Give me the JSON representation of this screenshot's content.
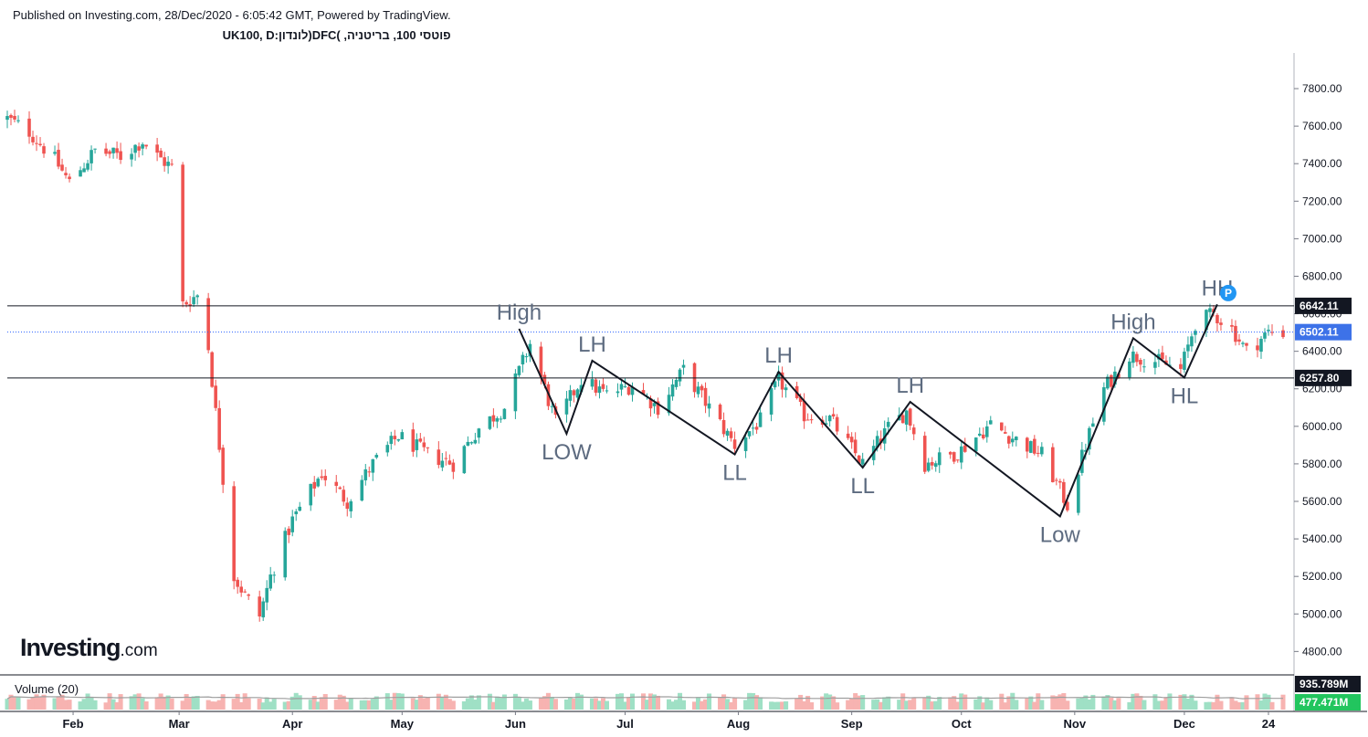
{
  "header": {
    "published": "Published on Investing.com, 28/Dec/2020 - 6:05:42 GMT, Powered by TradingView.",
    "symbol": "פוטסי 100, בריטניה, )DFC(לונדון:UK100, D"
  },
  "logo": {
    "text": "Investing",
    "suffix": ".com"
  },
  "volume_label": "Volume (20)",
  "colors": {
    "up": "#26a69a",
    "up_light": "#9fe0c5",
    "down": "#ef5350",
    "down_light": "#f7b3b1",
    "price_line": "#2962ff",
    "badge_current": "#3d72e8"
  },
  "chart_data": {
    "type": "candlestick",
    "timeframe": "D",
    "price_axis": {
      "ticks": [
        4800,
        5000,
        5200,
        5400,
        5600,
        5800,
        6000,
        6200,
        6400,
        6600,
        6800,
        7000,
        7200,
        7400,
        7600,
        7800
      ],
      "tick_labels": [
        "4800.00",
        "5000.00",
        "5200.00",
        "5400.00",
        "5600.00",
        "5800.00",
        "6000.00",
        "6200.00",
        "6400.00",
        "6600.00",
        "6800.00",
        "7000.00",
        "7200.00",
        "7400.00",
        "7600.00",
        "7800.00"
      ],
      "range": [
        4680,
        7990
      ]
    },
    "time_axis": {
      "labels": [
        "Feb",
        "Mar",
        "Apr",
        "May",
        "Jun",
        "Jul",
        "Aug",
        "Sep",
        "Oct",
        "Nov",
        "Dec",
        "24"
      ],
      "label_dates": [
        "2020-02-01",
        "2020-03-01",
        "2020-04-01",
        "2020-05-01",
        "2020-06-01",
        "2020-07-01",
        "2020-08-01",
        "2020-09-01",
        "2020-10-01",
        "2020-11-01",
        "2020-12-01",
        "2020-12-24"
      ],
      "range": [
        "2020-01-14",
        "2020-12-28"
      ]
    },
    "horizontal_lines": [
      {
        "price": 6642.11,
        "label": "6642.11",
        "style": "solid"
      },
      {
        "price": 6257.8,
        "label": "6257.80",
        "style": "solid"
      }
    ],
    "current_price": {
      "price": 6502.11,
      "label": "6502.11"
    },
    "price_path": [
      [
        "2020-01-14",
        7640
      ],
      [
        "2020-01-20",
        7570
      ],
      [
        "2020-01-27",
        7420
      ],
      [
        "2020-01-31",
        7300
      ],
      [
        "2020-02-07",
        7470
      ],
      [
        "2020-02-14",
        7440
      ],
      [
        "2020-02-20",
        7520
      ],
      [
        "2020-02-24",
        7440
      ],
      [
        "2020-02-28",
        7380
      ],
      [
        "2020-03-02",
        6650
      ],
      [
        "2020-03-06",
        6700
      ],
      [
        "2020-03-09",
        6420
      ],
      [
        "2020-03-12",
        5900
      ],
      [
        "2020-03-16",
        5200
      ],
      [
        "2020-03-19",
        5100
      ],
      [
        "2020-03-23",
        4990
      ],
      [
        "2020-03-26",
        5200
      ],
      [
        "2020-04-01",
        5500
      ],
      [
        "2020-04-09",
        5750
      ],
      [
        "2020-04-16",
        5600
      ],
      [
        "2020-04-23",
        5800
      ],
      [
        "2020-04-30",
        5950
      ],
      [
        "2020-05-08",
        5850
      ],
      [
        "2020-05-15",
        5800
      ],
      [
        "2020-05-22",
        5990
      ],
      [
        "2020-05-29",
        6100
      ],
      [
        "2020-06-05",
        6440
      ],
      [
        "2020-06-12",
        6020
      ],
      [
        "2020-06-19",
        6250
      ],
      [
        "2020-06-26",
        6170
      ],
      [
        "2020-07-03",
        6220
      ],
      [
        "2020-07-10",
        6100
      ],
      [
        "2020-07-17",
        6300
      ],
      [
        "2020-07-24",
        6100
      ],
      [
        "2020-07-31",
        5900
      ],
      [
        "2020-08-07",
        6030
      ],
      [
        "2020-08-12",
        6250
      ],
      [
        "2020-08-19",
        6060
      ],
      [
        "2020-08-26",
        6040
      ],
      [
        "2020-09-04",
        5800
      ],
      [
        "2020-09-11",
        5990
      ],
      [
        "2020-09-16",
        6080
      ],
      [
        "2020-09-21",
        5800
      ],
      [
        "2020-09-30",
        5860
      ],
      [
        "2020-10-09",
        6010
      ],
      [
        "2020-10-15",
        5940
      ],
      [
        "2020-10-23",
        5850
      ],
      [
        "2020-10-30",
        5580
      ],
      [
        "2020-11-04",
        5900
      ],
      [
        "2020-11-09",
        6200
      ],
      [
        "2020-11-16",
        6380
      ],
      [
        "2020-11-23",
        6350
      ],
      [
        "2020-11-30",
        6300
      ],
      [
        "2020-12-04",
        6550
      ],
      [
        "2020-12-09",
        6600
      ],
      [
        "2020-12-14",
        6520
      ],
      [
        "2020-12-18",
        6400
      ],
      [
        "2020-12-21",
        6450
      ],
      [
        "2020-12-24",
        6502
      ]
    ],
    "swing_lines": [
      [
        "2020-06-02",
        6520
      ],
      [
        "2020-06-15",
        5960
      ],
      [
        "2020-06-22",
        6350
      ],
      [
        "2020-07-31",
        5850
      ],
      [
        "2020-08-12",
        6290
      ],
      [
        "2020-09-04",
        5780
      ],
      [
        "2020-09-17",
        6130
      ],
      [
        "2020-10-28",
        5520
      ],
      [
        "2020-11-17",
        6470
      ],
      [
        "2020-12-01",
        6260
      ],
      [
        "2020-12-10",
        6650
      ]
    ],
    "annotations": [
      {
        "text": "High",
        "date": "2020-06-02",
        "price": 6520,
        "position": "above"
      },
      {
        "text": "LOW",
        "date": "2020-06-15",
        "price": 5960,
        "position": "below"
      },
      {
        "text": "LH",
        "date": "2020-06-22",
        "price": 6350,
        "position": "above"
      },
      {
        "text": "LL",
        "date": "2020-07-31",
        "price": 5850,
        "position": "below"
      },
      {
        "text": "LH",
        "date": "2020-08-12",
        "price": 6290,
        "position": "above"
      },
      {
        "text": "LL",
        "date": "2020-09-04",
        "price": 5780,
        "position": "below"
      },
      {
        "text": "LH",
        "date": "2020-09-17",
        "price": 6130,
        "position": "above"
      },
      {
        "text": "Low",
        "date": "2020-10-28",
        "price": 5520,
        "position": "below"
      },
      {
        "text": "High",
        "date": "2020-11-17",
        "price": 6470,
        "position": "above"
      },
      {
        "text": "HL",
        "date": "2020-12-01",
        "price": 6260,
        "position": "below"
      },
      {
        "text": "HH",
        "date": "2020-12-10",
        "price": 6650,
        "position": "above"
      }
    ],
    "marker": {
      "text": "P",
      "date": "2020-12-12",
      "color": "#2196f3"
    },
    "volume": {
      "label": "Volume (20)",
      "last_labels": [
        "935.789M",
        "477.471M"
      ],
      "max_label_value": 935.789,
      "last_value": 477.471,
      "unit": "M",
      "ma_length": 20
    }
  }
}
